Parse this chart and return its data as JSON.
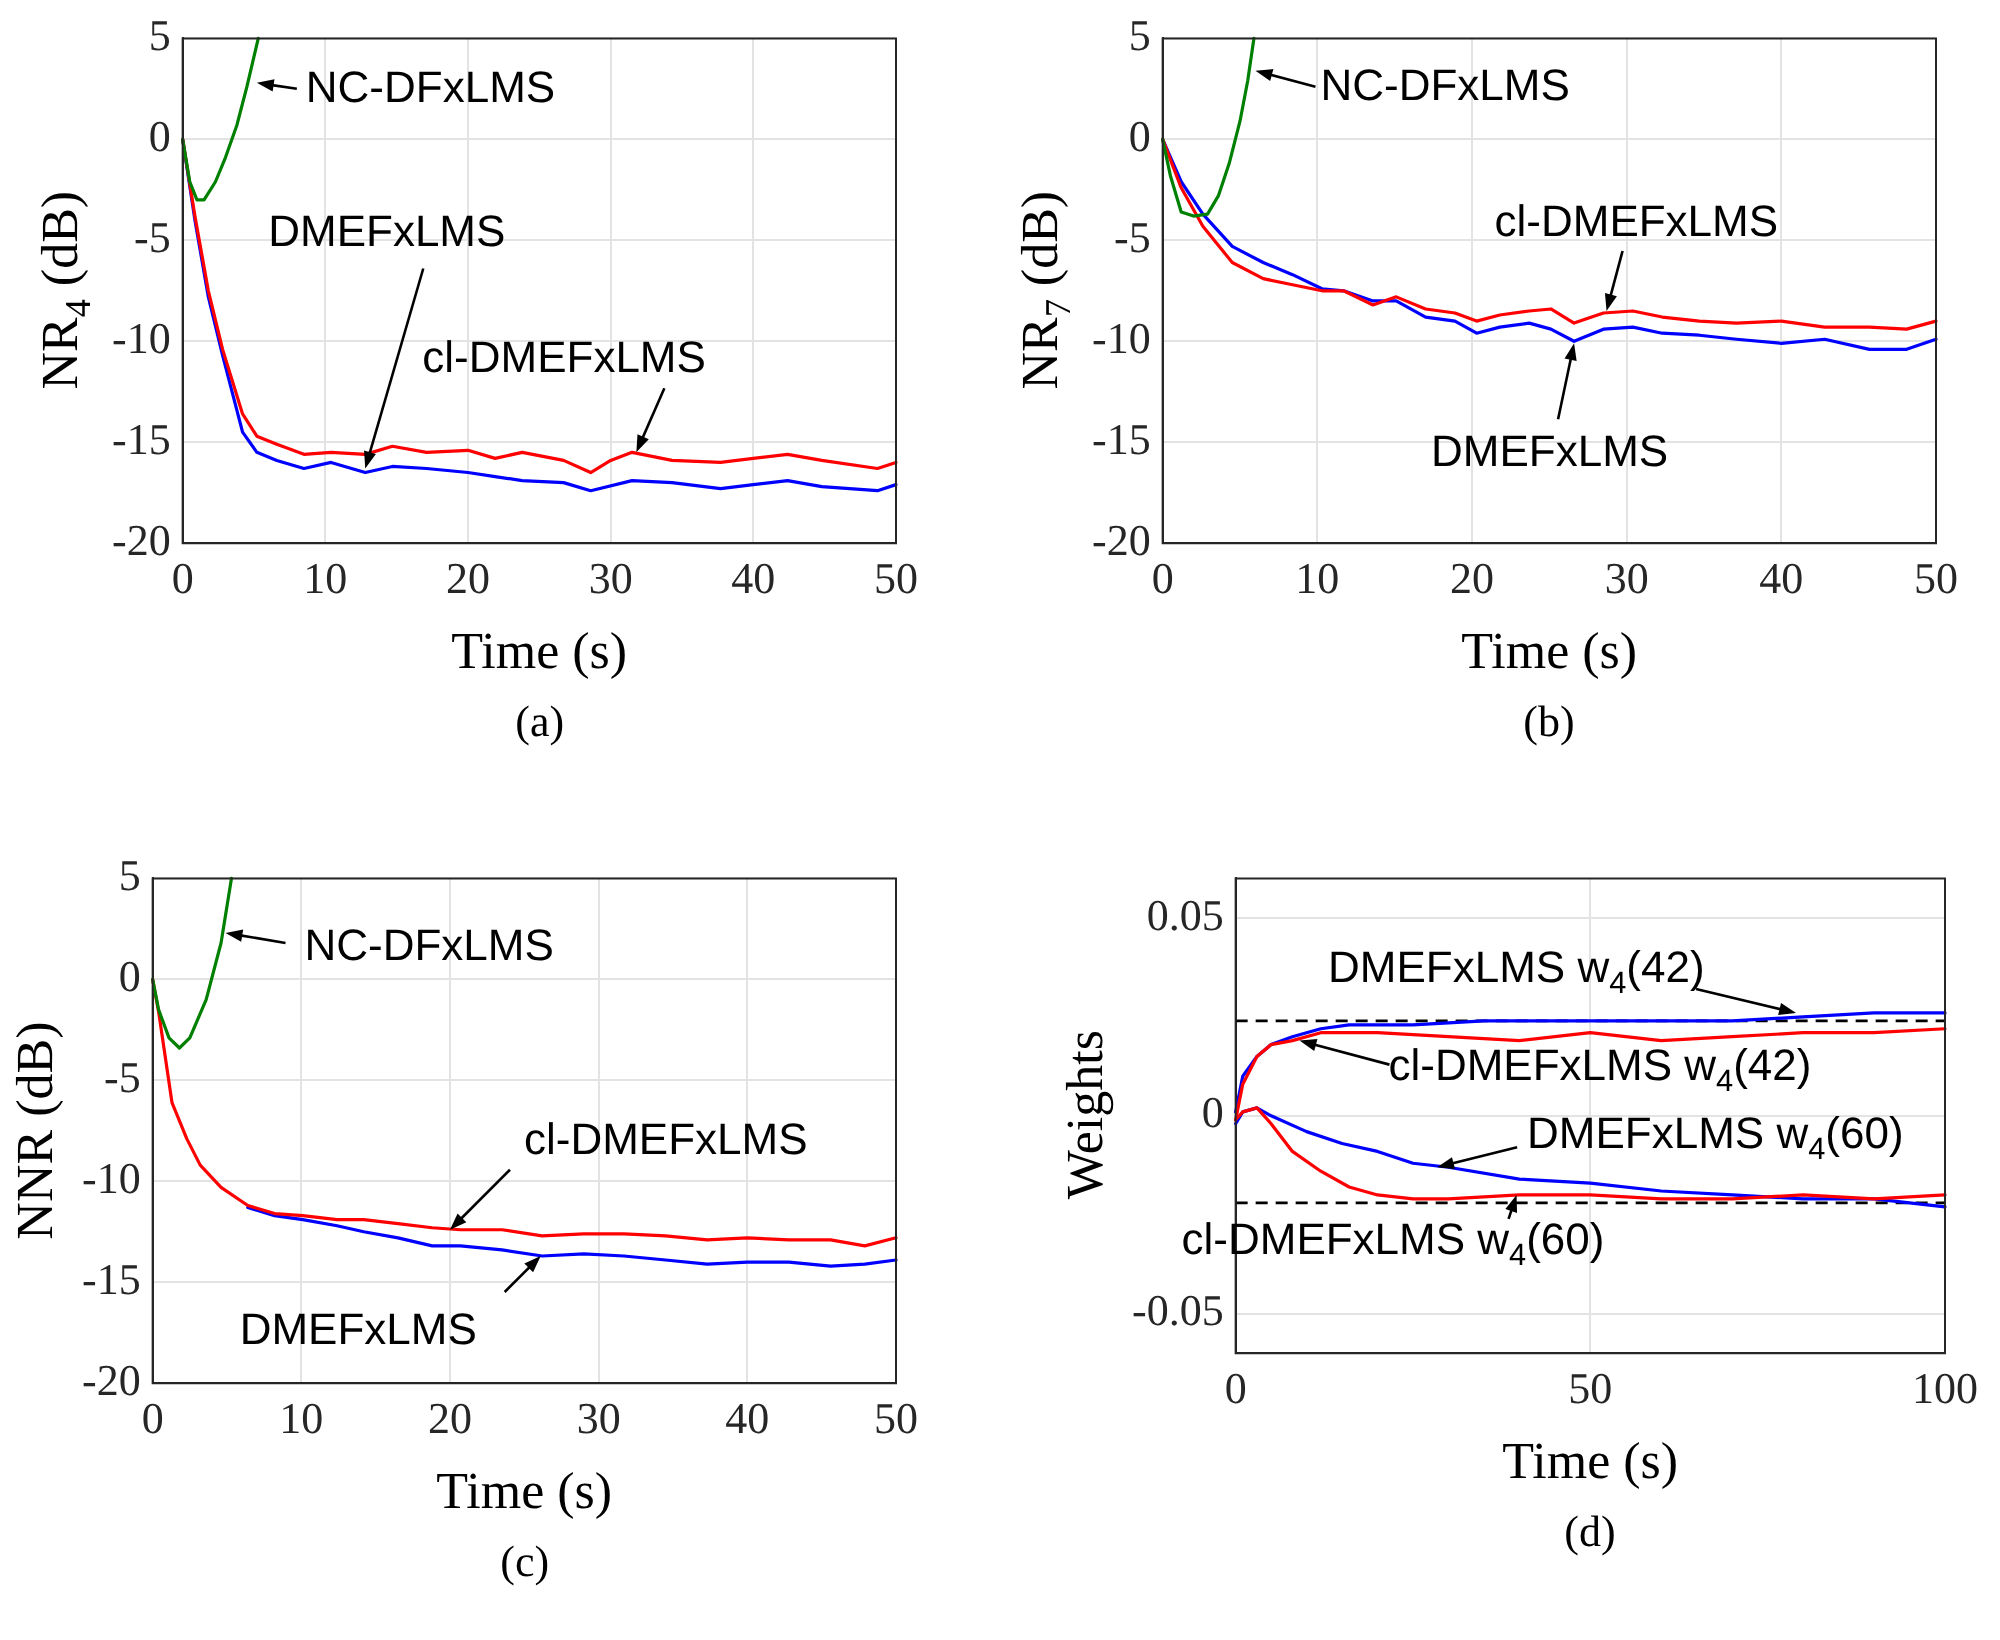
{
  "chart_data": [
    {
      "type": "line",
      "title": "(a)",
      "xlabel": "Time (s)",
      "ylabel": "NR$_{4}$ (dB)",
      "xlim": [
        0,
        50
      ],
      "xticks": [
        0,
        10,
        20,
        30,
        40,
        50
      ],
      "ylim": [
        -20,
        5
      ],
      "yticks": [
        -20,
        -15,
        -10,
        -5,
        0,
        5
      ],
      "grid": true,
      "line_style": "solid",
      "marker": "none",
      "series": [
        {
          "color": "#0000ff",
          "x": [
            0,
            0.86,
            1.8,
            2.8,
            4.2,
            5.2,
            6.6,
            8.5,
            10.4,
            12.8,
            14.7,
            17.1,
            20,
            21.9,
            23.8,
            26.7,
            28.6,
            31.5,
            34.3,
            37.7,
            40,
            42.4,
            44.8,
            48.7,
            50
          ],
          "values": [
            0,
            -4.0,
            -7.8,
            -10.7,
            -14.5,
            -15.5,
            -15.9,
            -16.3,
            -16.0,
            -16.5,
            -16.2,
            -16.3,
            -16.5,
            -16.7,
            -16.9,
            -17.0,
            -17.4,
            -16.9,
            -17.0,
            -17.3,
            -17.1,
            -16.9,
            -17.2,
            -17.4,
            -17.1
          ]
        },
        {
          "color": "#ff0000",
          "x": [
            0,
            0.86,
            1.8,
            2.8,
            4.2,
            5.2,
            6.6,
            8.5,
            10.4,
            12.8,
            14.7,
            17.1,
            20,
            21.9,
            23.8,
            26.7,
            28.6,
            30,
            31.5,
            34.3,
            37.7,
            40,
            42.4,
            44.8,
            48.7,
            50
          ],
          "values": [
            0,
            -3.8,
            -7.5,
            -10.4,
            -13.6,
            -14.7,
            -15.1,
            -15.6,
            -15.5,
            -15.6,
            -15.2,
            -15.5,
            -15.4,
            -15.8,
            -15.5,
            -15.9,
            -16.5,
            -15.9,
            -15.5,
            -15.9,
            -16.0,
            -15.8,
            -15.6,
            -15.9,
            -16.3,
            -16.0
          ]
        },
        {
          "color": "#008000",
          "x": [
            0,
            0.5,
            1.0,
            1.5,
            2.3,
            3.0,
            3.8,
            4.5,
            5.3
          ],
          "values": [
            0,
            -2.1,
            -3.0,
            -3.0,
            -2.1,
            -0.9,
            0.7,
            2.6,
            5
          ]
        }
      ],
      "annotations": [
        {
          "text": "NC-DFxLMS",
          "x": 5.2,
          "y": 2.8
        },
        {
          "text": "DMEFxLMS",
          "x": 12.8,
          "y": -16.3
        },
        {
          "text": "cl-DMEFxLMS",
          "x": 31.8,
          "y": -15.5
        }
      ]
    },
    {
      "type": "line",
      "title": "(b)",
      "xlabel": "Time (s)",
      "ylabel": "NR$_{7}$ (dB)",
      "xlim": [
        0,
        50
      ],
      "xticks": [
        0,
        10,
        20,
        30,
        40,
        50
      ],
      "ylim": [
        -20,
        5
      ],
      "yticks": [
        -20,
        -15,
        -10,
        -5,
        0,
        5
      ],
      "grid": true,
      "line_style": "solid",
      "marker": "none",
      "series": [
        {
          "color": "#0000ff",
          "x": [
            0,
            1.2,
            2.6,
            4.5,
            6.5,
            8.4,
            10.3,
            11.7,
            13.6,
            15.1,
            17,
            18.9,
            20.3,
            21.8,
            23.7,
            25.1,
            26.6,
            28.5,
            30.4,
            32.3,
            34.7,
            37.1,
            40,
            42.8,
            45.7,
            48.1,
            50
          ],
          "values": [
            0,
            -2.1,
            -3.7,
            -5.3,
            -6.1,
            -6.7,
            -7.4,
            -7.5,
            -8.0,
            -8.0,
            -8.8,
            -9.0,
            -9.6,
            -9.3,
            -9.1,
            -9.4,
            -10.0,
            -9.4,
            -9.3,
            -9.6,
            -9.7,
            -9.9,
            -10.1,
            -9.9,
            -10.4,
            -10.4,
            -9.9
          ]
        },
        {
          "color": "#ff0000",
          "x": [
            0,
            1.2,
            2.6,
            4.5,
            6.5,
            8.4,
            10.3,
            11.7,
            13.6,
            15.1,
            17,
            18.9,
            20.3,
            21.8,
            23.7,
            25.1,
            26.6,
            28.5,
            30.4,
            32.3,
            34.7,
            37.1,
            40,
            42.8,
            45.7,
            48.1,
            50
          ],
          "values": [
            0,
            -2.4,
            -4.3,
            -6.1,
            -6.9,
            -7.2,
            -7.5,
            -7.5,
            -8.2,
            -7.8,
            -8.4,
            -8.6,
            -9.0,
            -8.7,
            -8.5,
            -8.4,
            -9.1,
            -8.6,
            -8.5,
            -8.8,
            -9.0,
            -9.1,
            -9.0,
            -9.3,
            -9.3,
            -9.4,
            -9.0
          ]
        },
        {
          "color": "#008000",
          "x": [
            0,
            0.5,
            1.2,
            2.0,
            2.9,
            3.6,
            4.3,
            5.0,
            5.5,
            5.9
          ],
          "values": [
            0,
            -1.8,
            -3.6,
            -3.8,
            -3.7,
            -2.8,
            -1.2,
            0.9,
            2.9,
            5
          ]
        }
      ],
      "annotations": [
        {
          "text": "NC-DFxLMS",
          "x": 6.0,
          "y": 3.4
        },
        {
          "text": "cl-DMEFxLMS",
          "x": 28.7,
          "y": -8.5
        },
        {
          "text": "DMEFxLMS",
          "x": 26.6,
          "y": -10.1
        }
      ]
    },
    {
      "type": "line",
      "title": "(c)",
      "xlabel": "Time (s)",
      "ylabel": "NNR (dB)",
      "xlim": [
        0,
        50
      ],
      "xticks": [
        0,
        10,
        20,
        30,
        40,
        50
      ],
      "ylim": [
        -20,
        5
      ],
      "yticks": [
        -20,
        -15,
        -10,
        -5,
        0,
        5
      ],
      "grid": true,
      "line_style": "solid",
      "marker": "none",
      "series": [
        {
          "color": "#0000ff",
          "x": [
            6.4,
            8.2,
            10.1,
            12.4,
            14.2,
            16.5,
            18.8,
            20.7,
            23.5,
            26.2,
            29,
            31.7,
            34.5,
            37.3,
            40,
            42.8,
            45.6,
            47.9,
            50
          ],
          "values": [
            -11.3,
            -11.7,
            -11.9,
            -12.2,
            -12.5,
            -12.8,
            -13.2,
            -13.2,
            -13.4,
            -13.7,
            -13.6,
            -13.7,
            -13.9,
            -14.1,
            -14.0,
            -14.0,
            -14.2,
            -14.1,
            -13.9
          ]
        },
        {
          "color": "#ff0000",
          "x": [
            0,
            0.4,
            1.3,
            2.3,
            3.2,
            4.6,
            6.4,
            8.2,
            10.1,
            12.4,
            14.2,
            16.5,
            18.8,
            20.7,
            23.5,
            26.2,
            29,
            31.7,
            34.5,
            37.3,
            40,
            42.8,
            45.6,
            47.9,
            50
          ],
          "values": [
            0,
            -1.6,
            -6.1,
            -7.9,
            -9.2,
            -10.3,
            -11.2,
            -11.6,
            -11.7,
            -11.9,
            -11.9,
            -12.1,
            -12.3,
            -12.4,
            -12.4,
            -12.7,
            -12.6,
            -12.6,
            -12.7,
            -12.9,
            -12.8,
            -12.9,
            -12.9,
            -13.2,
            -12.8
          ]
        },
        {
          "color": "#008000",
          "x": [
            0,
            0.4,
            1.1,
            1.8,
            2.5,
            3.6,
            4.6,
            5.3
          ],
          "values": [
            0,
            -1.5,
            -2.9,
            -3.4,
            -2.9,
            -1.0,
            1.8,
            5
          ]
        }
      ],
      "annotations": [
        {
          "text": "NC-DFxLMS",
          "x": 4.9,
          "y": 2.3
        },
        {
          "text": "cl-DMEFxLMS",
          "x": 20,
          "y": -12.4
        },
        {
          "text": "DMEFxLMS",
          "x": 26.1,
          "y": -13.7
        }
      ]
    },
    {
      "type": "line",
      "title": "(d)",
      "xlabel": "Time (s)",
      "ylabel": "Weights",
      "xlim": [
        0,
        100
      ],
      "xticks": [
        0,
        50,
        100
      ],
      "ylim": [
        -0.06,
        0.06
      ],
      "yticks": [
        -0.05,
        0,
        0.05
      ],
      "grid": true,
      "line_style": "solid",
      "marker": "none",
      "series": [
        {
          "color": "#0000ff",
          "x": [
            0,
            1,
            3,
            5,
            8,
            12,
            16,
            25,
            35,
            50,
            60,
            70,
            80,
            90,
            100
          ],
          "values": [
            0.001,
            0.01,
            0.015,
            0.018,
            0.02,
            0.022,
            0.023,
            0.023,
            0.024,
            0.024,
            0.024,
            0.024,
            0.025,
            0.026,
            0.026
          ]
        },
        {
          "color": "#ff0000",
          "x": [
            0,
            1,
            3,
            5,
            8,
            12,
            20,
            30,
            40,
            50,
            60,
            70,
            80,
            90,
            100
          ],
          "values": [
            -0.001,
            0.008,
            0.015,
            0.018,
            0.019,
            0.021,
            0.021,
            0.02,
            0.019,
            0.021,
            0.019,
            0.02,
            0.021,
            0.021,
            0.022
          ]
        },
        {
          "color": "#0000ff",
          "x": [
            0,
            1,
            3,
            5,
            10,
            15,
            20,
            25,
            30,
            40,
            50,
            60,
            70,
            80,
            90,
            100
          ],
          "values": [
            -0.002,
            0.001,
            0.002,
            0,
            -0.004,
            -0.007,
            -0.009,
            -0.012,
            -0.013,
            -0.016,
            -0.017,
            -0.019,
            -0.02,
            -0.021,
            -0.021,
            -0.023
          ]
        },
        {
          "color": "#ff0000",
          "x": [
            0,
            1,
            3,
            5,
            8,
            12,
            16,
            20,
            25,
            30,
            40,
            50,
            60,
            70,
            80,
            90,
            100
          ],
          "values": [
            -0.001,
            0.001,
            0.002,
            -0.002,
            -0.009,
            -0.014,
            -0.018,
            -0.02,
            -0.021,
            -0.021,
            -0.02,
            -0.02,
            -0.021,
            -0.021,
            -0.02,
            -0.021,
            -0.02
          ]
        }
      ],
      "ref_lines": [
        {
          "axis": "y",
          "value": 0.024,
          "color": "#000000",
          "line_style": "dashed"
        },
        {
          "axis": "y",
          "value": -0.022,
          "color": "#000000",
          "line_style": "dashed"
        }
      ],
      "annotations": [
        {
          "text": "DMEFxLMS w$_{4}$(42)",
          "x": 79,
          "y": 0.026
        },
        {
          "text": "cl-DMEFxLMS w$_{4}$(42)",
          "x": 9,
          "y": 0.019
        },
        {
          "text": "DMEFxLMS w$_{4}$(60)",
          "x": 28.4,
          "y": -0.013
        },
        {
          "text": "cl-DMEFxLMS w$_{4}$(60)",
          "x": 39.6,
          "y": -0.02
        }
      ]
    }
  ]
}
